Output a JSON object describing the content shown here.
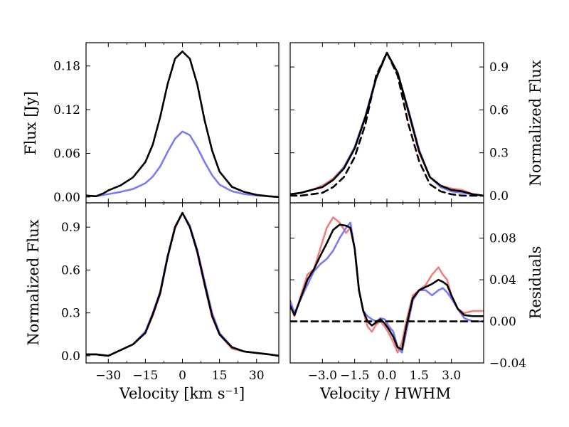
{
  "figure": {
    "x_label_left": "Velocity [km s⁻¹]",
    "x_label_right": "Velocity / HWHM"
  },
  "colors": {
    "red": "#f08080",
    "blue": "#7b7bf5",
    "black": "#000000"
  },
  "chart_data": [
    {
      "id": "top-left",
      "type": "line",
      "ylabel": "Flux [Jy]",
      "xlim": [
        -39,
        39
      ],
      "ylim": [
        -0.008,
        0.212
      ],
      "xticks": [
        -30,
        -15,
        0,
        15,
        30
      ],
      "yticks": [
        0.0,
        0.06,
        0.12,
        0.18
      ],
      "ytick_labels": [
        "0.00",
        "0.06",
        "0.12",
        "0.18"
      ],
      "series": [
        {
          "name": "blue",
          "color": "#7b7bf5",
          "dash": false,
          "x": [
            -39,
            -35,
            -30,
            -25,
            -20,
            -15,
            -12,
            -9,
            -6,
            -3,
            0,
            3,
            6,
            9,
            12,
            15,
            20,
            25,
            30,
            35,
            39
          ],
          "y": [
            0.002,
            0.001,
            0.004,
            0.007,
            0.011,
            0.019,
            0.028,
            0.042,
            0.062,
            0.08,
            0.09,
            0.085,
            0.068,
            0.048,
            0.03,
            0.017,
            0.008,
            0.004,
            0.002,
            0.001,
            0.0
          ]
        },
        {
          "name": "black",
          "color": "#000000",
          "dash": false,
          "x": [
            -39,
            -35,
            -32,
            -30,
            -25,
            -20,
            -15,
            -12,
            -9,
            -6,
            -3,
            0,
            3,
            6,
            9,
            12,
            15,
            20,
            25,
            30,
            35,
            39
          ],
          "y": [
            0.002,
            0.001,
            0.005,
            0.009,
            0.016,
            0.027,
            0.048,
            0.072,
            0.11,
            0.155,
            0.19,
            0.2,
            0.19,
            0.155,
            0.105,
            0.064,
            0.035,
            0.014,
            0.007,
            0.003,
            0.001,
            0.0
          ]
        }
      ]
    },
    {
      "id": "top-right",
      "type": "line",
      "ylabel": "Normalized Flux",
      "xlim": [
        -4.5,
        4.5
      ],
      "ylim": [
        -0.05,
        1.07
      ],
      "xticks": [
        -3.0,
        -1.5,
        0.0,
        1.5,
        3.0
      ],
      "yticks": [
        0.0,
        0.3,
        0.6,
        0.9
      ],
      "ytick_labels": [
        "0.0",
        "0.3",
        "0.6",
        "0.9"
      ],
      "series": [
        {
          "name": "red",
          "color": "#f08080",
          "dash": false,
          "x": [
            -4.5,
            -4,
            -3.5,
            -3,
            -2.5,
            -2,
            -1.5,
            -1,
            -0.5,
            0,
            0.5,
            1,
            1.5,
            2,
            2.5,
            3,
            3.5,
            4,
            4.5
          ],
          "y": [
            0.01,
            0.02,
            0.04,
            0.07,
            0.12,
            0.2,
            0.33,
            0.55,
            0.82,
            1.0,
            0.86,
            0.58,
            0.3,
            0.13,
            0.07,
            0.05,
            0.04,
            0.01,
            0.0
          ]
        },
        {
          "name": "blue",
          "color": "#7b7bf5",
          "dash": false,
          "x": [
            -4.5,
            -4,
            -3.5,
            -3,
            -2.5,
            -2,
            -1.5,
            -1,
            -0.5,
            0,
            0.5,
            1,
            1.5,
            2,
            2.5,
            3,
            3.5,
            4,
            4.5
          ],
          "y": [
            0.01,
            0.02,
            0.04,
            0.06,
            0.11,
            0.2,
            0.34,
            0.56,
            0.83,
            1.0,
            0.86,
            0.6,
            0.32,
            0.13,
            0.06,
            0.03,
            0.02,
            0.01,
            0.0
          ]
        },
        {
          "name": "black",
          "color": "#000000",
          "dash": false,
          "x": [
            -4.5,
            -4,
            -3.5,
            -3,
            -2.5,
            -2,
            -1.5,
            -1,
            -0.5,
            0,
            0.5,
            1,
            1.5,
            2,
            2.5,
            3,
            3.5,
            4,
            4.5
          ],
          "y": [
            0.01,
            0.02,
            0.04,
            0.06,
            0.11,
            0.19,
            0.33,
            0.55,
            0.82,
            1.0,
            0.86,
            0.59,
            0.31,
            0.13,
            0.07,
            0.04,
            0.03,
            0.01,
            0.0
          ]
        },
        {
          "name": "gaussian",
          "color": "#000000",
          "dash": true,
          "x": [
            -4.5,
            -4,
            -3.5,
            -3,
            -2.5,
            -2,
            -1.5,
            -1,
            -0.5,
            0,
            0.5,
            1,
            1.5,
            2,
            2.5,
            3,
            3.5,
            4,
            4.5
          ],
          "y": [
            0.0,
            0.0,
            0.01,
            0.02,
            0.06,
            0.13,
            0.27,
            0.5,
            0.84,
            1.0,
            0.84,
            0.5,
            0.24,
            0.08,
            0.03,
            0.01,
            0.0,
            0.0,
            0.0
          ]
        }
      ]
    },
    {
      "id": "bottom-left",
      "type": "line",
      "ylabel": "Normalized Flux",
      "xlim": [
        -39,
        39
      ],
      "ylim": [
        -0.05,
        1.07
      ],
      "xticks": [
        -30,
        -15,
        0,
        15,
        30
      ],
      "xtick_labels": [
        "−30",
        "−15",
        "0",
        "15",
        "30"
      ],
      "yticks": [
        0.0,
        0.3,
        0.6,
        0.9
      ],
      "ytick_labels": [
        "0.0",
        "0.3",
        "0.6",
        "0.9"
      ],
      "series": [
        {
          "name": "red",
          "color": "#f08080",
          "dash": false,
          "x": [
            -39,
            -35,
            -30,
            -25,
            -20,
            -15,
            -12,
            -9,
            -6,
            -3,
            0,
            3,
            6,
            9,
            12,
            15,
            20,
            25,
            30,
            35,
            39
          ],
          "y": [
            0.01,
            0.01,
            0.0,
            0.04,
            0.08,
            0.16,
            0.28,
            0.43,
            0.69,
            0.89,
            1.0,
            0.9,
            0.72,
            0.49,
            0.27,
            0.15,
            0.05,
            0.03,
            0.02,
            0.01,
            0.0
          ]
        },
        {
          "name": "blue",
          "color": "#7b7bf5",
          "dash": false,
          "x": [
            -39,
            -35,
            -30,
            -25,
            -20,
            -15,
            -12,
            -9,
            -6,
            -3,
            0,
            3,
            6,
            9,
            12,
            15,
            20,
            25,
            30,
            35,
            39
          ],
          "y": [
            0.01,
            0.01,
            0.0,
            0.04,
            0.08,
            0.17,
            0.3,
            0.45,
            0.7,
            0.9,
            1.0,
            0.91,
            0.74,
            0.52,
            0.3,
            0.16,
            0.06,
            0.03,
            0.02,
            0.01,
            0.0
          ]
        },
        {
          "name": "black",
          "color": "#000000",
          "dash": false,
          "x": [
            -39,
            -35,
            -30,
            -25,
            -20,
            -15,
            -12,
            -9,
            -6,
            -3,
            0,
            3,
            6,
            9,
            12,
            15,
            20,
            25,
            30,
            35,
            39
          ],
          "y": [
            0.01,
            0.01,
            0.0,
            0.04,
            0.08,
            0.16,
            0.29,
            0.44,
            0.69,
            0.9,
            1.0,
            0.9,
            0.73,
            0.5,
            0.28,
            0.15,
            0.06,
            0.03,
            0.02,
            0.01,
            0.0
          ]
        }
      ]
    },
    {
      "id": "bottom-right",
      "type": "line",
      "ylabel": "Residuals",
      "xlim": [
        -4.5,
        4.5
      ],
      "ylim": [
        -0.04,
        0.114
      ],
      "xticks": [
        -3.0,
        -1.5,
        0.0,
        1.5,
        3.0
      ],
      "xtick_labels": [
        "−3.0",
        "−1.5",
        "0.0",
        "1.5",
        "3.0"
      ],
      "yticks": [
        -0.04,
        0.0,
        0.04,
        0.08
      ],
      "ytick_labels": [
        "−0.04",
        "0.00",
        "0.04",
        "0.08"
      ],
      "series": [
        {
          "name": "red",
          "color": "#f08080",
          "dash": false,
          "x": [
            -4.5,
            -4.3,
            -4.0,
            -3.7,
            -3.4,
            -3.1,
            -2.8,
            -2.5,
            -2.2,
            -1.9,
            -1.7,
            -1.5,
            -1.3,
            -1.1,
            -0.9,
            -0.7,
            -0.5,
            -0.3,
            -0.1,
            0.1,
            0.3,
            0.5,
            0.7,
            0.9,
            1.2,
            1.5,
            1.8,
            2.1,
            2.4,
            2.6,
            2.8,
            3.0,
            3.3,
            3.6,
            4.0,
            4.5
          ],
          "y": [
            0.015,
            0.005,
            0.025,
            0.045,
            0.05,
            0.07,
            0.09,
            0.1,
            0.095,
            0.085,
            0.09,
            0.07,
            0.03,
            0.01,
            -0.005,
            -0.01,
            -0.003,
            0.0,
            -0.005,
            -0.012,
            -0.02,
            -0.03,
            -0.02,
            0.0,
            0.025,
            0.03,
            0.035,
            0.045,
            0.052,
            0.045,
            0.04,
            0.025,
            0.012,
            0.008,
            0.01,
            0.01
          ]
        },
        {
          "name": "blue",
          "color": "#7b7bf5",
          "dash": false,
          "x": [
            -4.5,
            -4.3,
            -4.0,
            -3.7,
            -3.4,
            -3.1,
            -2.8,
            -2.5,
            -2.2,
            -1.9,
            -1.7,
            -1.5,
            -1.3,
            -1.1,
            -0.9,
            -0.7,
            -0.5,
            -0.3,
            -0.1,
            0.1,
            0.3,
            0.5,
            0.7,
            0.9,
            1.2,
            1.5,
            1.8,
            2.1,
            2.4,
            2.6,
            2.8,
            3.0,
            3.3,
            3.6,
            4.0,
            4.5
          ],
          "y": [
            0.02,
            0.008,
            0.022,
            0.035,
            0.048,
            0.055,
            0.06,
            0.068,
            0.08,
            0.09,
            0.095,
            0.07,
            0.03,
            0.01,
            0.005,
            0.002,
            0.0,
            0.003,
            0.002,
            -0.005,
            -0.01,
            -0.025,
            -0.03,
            -0.01,
            0.02,
            0.03,
            0.03,
            0.025,
            0.03,
            0.032,
            0.028,
            0.022,
            0.012,
            0.003,
            0.0,
            0.0
          ]
        },
        {
          "name": "black",
          "color": "#000000",
          "dash": false,
          "x": [
            -4.5,
            -4.3,
            -4.0,
            -3.7,
            -3.4,
            -3.1,
            -2.8,
            -2.5,
            -2.2,
            -1.9,
            -1.7,
            -1.5,
            -1.3,
            -1.1,
            -0.9,
            -0.7,
            -0.5,
            -0.3,
            -0.1,
            0.1,
            0.3,
            0.5,
            0.7,
            0.9,
            1.2,
            1.5,
            1.8,
            2.1,
            2.4,
            2.6,
            2.8,
            3.0,
            3.3,
            3.6,
            4.0,
            4.5
          ],
          "y": [
            0.015,
            0.006,
            0.023,
            0.04,
            0.05,
            0.063,
            0.075,
            0.088,
            0.093,
            0.092,
            0.09,
            0.07,
            0.03,
            0.01,
            0.0,
            -0.004,
            -0.001,
            0.002,
            -0.002,
            -0.008,
            -0.015,
            -0.025,
            -0.027,
            -0.005,
            0.022,
            0.03,
            0.033,
            0.036,
            0.04,
            0.038,
            0.035,
            0.025,
            0.012,
            0.006,
            0.005,
            0.005
          ]
        },
        {
          "name": "zero-line",
          "color": "#000000",
          "dash": true,
          "x": [
            -4.5,
            4.5
          ],
          "y": [
            0.0,
            0.0
          ]
        }
      ]
    }
  ]
}
